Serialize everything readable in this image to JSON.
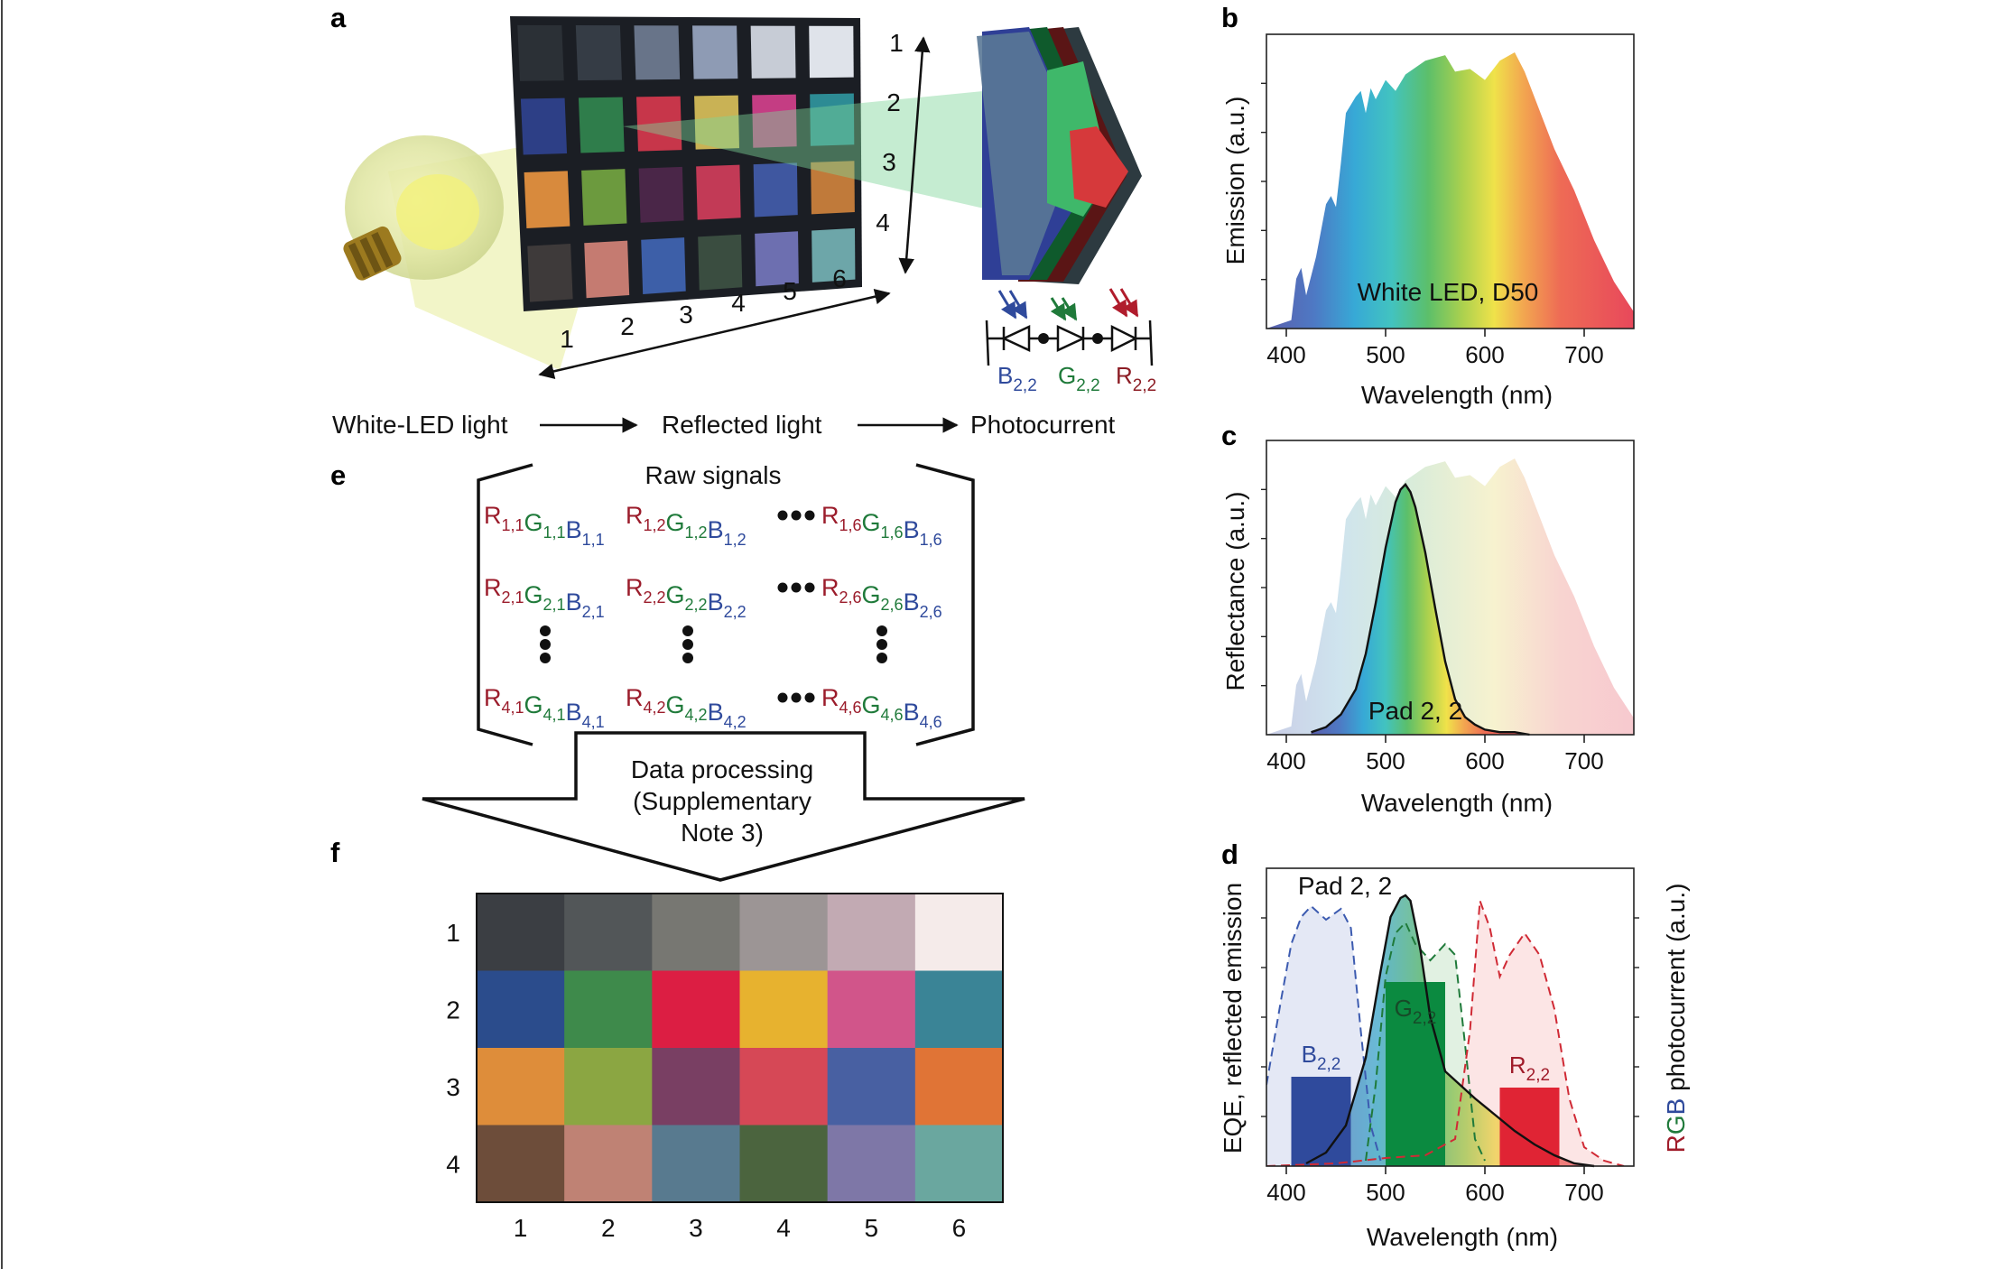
{
  "panels": {
    "a": "a",
    "b": "b",
    "c": "c",
    "d": "d",
    "e": "e",
    "f": "f"
  },
  "panel_a": {
    "row_numbers": [
      "1",
      "2",
      "3",
      "4"
    ],
    "col_numbers": [
      "1",
      "2",
      "3",
      "4",
      "5",
      "6"
    ],
    "detector_labels": [
      {
        "base": "B",
        "sub": "2,2",
        "color": "#2f4a9c"
      },
      {
        "base": "G",
        "sub": "2,2",
        "color": "#1f7a3a"
      },
      {
        "base": "R",
        "sub": "2,2",
        "color": "#8c1c24"
      }
    ],
    "flow": [
      "White-LED light",
      "Reflected light",
      "Photocurrent"
    ],
    "chart_tiles": [
      [
        "#2b3036",
        "#353c45",
        "#687489",
        "#8e9bb4",
        "#c7ccd6",
        "#dfe3ea"
      ],
      [
        "#2d3f86",
        "#2f7d4b",
        "#c7364a",
        "#c9b255",
        "#c43d83",
        "#2d8b94"
      ],
      [
        "#d88a3d",
        "#6c9a3e",
        "#4a2648",
        "#c23a56",
        "#3f57a0",
        "#c07a3a"
      ],
      [
        "#3e3a3a",
        "#c57b71",
        "#3d5fa8",
        "#3a4d40",
        "#6d6fb0",
        "#6da6a9"
      ]
    ]
  },
  "panel_b": {
    "annotation": "White LED, D50",
    "xlabel": "Wavelength (nm)",
    "ylabel": "Emission (a.u.)"
  },
  "panel_c": {
    "annotation": "Pad 2, 2",
    "xlabel": "Wavelength (nm)",
    "ylabel": "Reflectance (a.u.)"
  },
  "panel_d": {
    "annotation": "Pad 2, 2",
    "xlabel": "Wavelength (nm)",
    "ylabel_left": "EQE, reflected emission",
    "ylabel_right_parts": [
      {
        "text": "R",
        "color": "#a01c2a"
      },
      {
        "text": "G",
        "color": "#1f7a3a"
      },
      {
        "text": "B",
        "color": "#2f4a9c"
      },
      {
        "text": " photocurrent (a.u.)",
        "color": "#111111"
      }
    ],
    "bar_labels": [
      {
        "base": "B",
        "sub": "2,2",
        "color": "#2f4a9c"
      },
      {
        "base": "G",
        "sub": "2,2",
        "color": "#174a28"
      },
      {
        "base": "R",
        "sub": "2,2",
        "color": "#a01c2a"
      }
    ]
  },
  "panel_e": {
    "title": "Raw signals",
    "rows": [
      {
        "r": "1",
        "cols": [
          "1",
          "2",
          "6"
        ]
      },
      {
        "r": "2",
        "cols": [
          "1",
          "2",
          "6"
        ]
      },
      {
        "r": "4",
        "cols": [
          "1",
          "2",
          "6"
        ]
      }
    ],
    "letters": [
      {
        "l": "R",
        "color": "#9b1c2b"
      },
      {
        "l": "G",
        "color": "#1f7a3a"
      },
      {
        "l": "B",
        "color": "#2f4a9c"
      }
    ],
    "arrow_text": [
      "Data processing",
      "(Supplementary",
      "Note 3)"
    ]
  },
  "panel_f": {
    "row_labels": [
      "1",
      "2",
      "3",
      "4"
    ],
    "col_labels": [
      "1",
      "2",
      "3",
      "4",
      "5",
      "6"
    ],
    "colors": [
      [
        "#3b3e43",
        "#525658",
        "#777772",
        "#9c9595",
        "#c2aab3",
        "#f5ebea"
      ],
      [
        "#2b4c8c",
        "#3e8a4b",
        "#dc1e43",
        "#e7b22f",
        "#d1558a",
        "#3a8496"
      ],
      [
        "#de8d3a",
        "#8ba642",
        "#793f63",
        "#d64856",
        "#4860a2",
        "#e07436"
      ],
      [
        "#6d4d3a",
        "#bf8274",
        "#587a8f",
        "#4b643e",
        "#7e77a7",
        "#6aa79f"
      ]
    ]
  },
  "chart_data": [
    {
      "type": "area",
      "panel": "b",
      "xlabel": "Wavelength (nm)",
      "ylabel": "Emission (a.u.)",
      "xlim": [
        380,
        750
      ],
      "xticks": [
        400,
        500,
        600,
        700
      ],
      "annotation": "White LED, D50",
      "series": [
        {
          "x": [
            380,
            405,
            410,
            415,
            420,
            430,
            440,
            445,
            450,
            455,
            460,
            470,
            475,
            480,
            485,
            490,
            500,
            510,
            520,
            540,
            560,
            570,
            585,
            600,
            615,
            630,
            640,
            655,
            670,
            690,
            710,
            730,
            750
          ],
          "values": [
            0.0,
            0.03,
            0.18,
            0.22,
            0.12,
            0.26,
            0.45,
            0.48,
            0.44,
            0.6,
            0.78,
            0.84,
            0.86,
            0.78,
            0.87,
            0.83,
            0.9,
            0.86,
            0.92,
            0.97,
            0.99,
            0.93,
            0.94,
            0.9,
            0.97,
            1.0,
            0.93,
            0.79,
            0.65,
            0.5,
            0.32,
            0.17,
            0.06
          ]
        }
      ]
    },
    {
      "type": "area",
      "panel": "c",
      "xlabel": "Wavelength (nm)",
      "ylabel": "Reflectance (a.u.)",
      "xlim": [
        380,
        750
      ],
      "xticks": [
        400,
        500,
        600,
        700
      ],
      "annotation": "Pad 2, 2",
      "series": [
        {
          "name": "",
          "x": [
            425,
            440,
            455,
            470,
            480,
            490,
            500,
            510,
            515,
            520,
            525,
            530,
            540,
            550,
            560,
            570,
            580,
            590,
            600,
            615,
            630,
            645
          ],
          "values": [
            0.01,
            0.03,
            0.08,
            0.18,
            0.32,
            0.52,
            0.74,
            0.92,
            0.97,
            0.99,
            0.96,
            0.9,
            0.72,
            0.5,
            0.29,
            0.14,
            0.07,
            0.04,
            0.02,
            0.01,
            0.01,
            0.0
          ]
        }
      ]
    },
    {
      "type": "line",
      "panel": "d",
      "xlabel": "Wavelength (nm)",
      "ylabel": "EQE, reflected emission",
      "xlim": [
        380,
        750
      ],
      "xticks": [
        400,
        500,
        600,
        700
      ],
      "annotation": "Pad 2, 2",
      "series": [
        {
          "x": [
            380,
            395,
            405,
            415,
            425,
            440,
            455,
            465,
            475,
            485,
            495
          ],
          "values": [
            0.3,
            0.62,
            0.82,
            0.92,
            0.96,
            0.91,
            0.95,
            0.88,
            0.5,
            0.15,
            0.02
          ]
        },
        {
          "x": [
            480,
            490,
            500,
            510,
            520,
            530,
            545,
            560,
            570,
            580,
            590,
            600
          ],
          "values": [
            0.02,
            0.3,
            0.7,
            0.86,
            0.9,
            0.82,
            0.76,
            0.82,
            0.78,
            0.45,
            0.1,
            0.02
          ]
        },
        {
          "x": [
            380,
            450,
            500,
            540,
            570,
            585,
            595,
            605,
            615,
            625,
            640,
            655,
            670,
            685,
            700,
            720,
            740
          ],
          "values": [
            0.0,
            0.01,
            0.03,
            0.04,
            0.1,
            0.5,
            0.98,
            0.88,
            0.7,
            0.78,
            0.86,
            0.78,
            0.58,
            0.25,
            0.07,
            0.02,
            0.0
          ]
        },
        {
          "x": [
            420,
            440,
            460,
            480,
            495,
            505,
            515,
            520,
            525,
            535,
            545,
            560,
            575,
            590,
            610,
            630,
            650,
            670,
            690,
            710
          ],
          "values": [
            0.01,
            0.05,
            0.15,
            0.4,
            0.72,
            0.92,
            0.99,
            1.0,
            0.98,
            0.8,
            0.55,
            0.35,
            0.3,
            0.25,
            0.19,
            0.13,
            0.08,
            0.04,
            0.01,
            0.0
          ]
        }
      ],
      "bars": [
        {
          "label": "B2,2",
          "x_range": [
            405,
            465
          ],
          "value": 0.33,
          "color": "#2f4a9c"
        },
        {
          "label": "G2,2",
          "x_range": [
            500,
            560
          ],
          "value": 0.68,
          "color": "#0b8a40"
        },
        {
          "label": "R2,2",
          "x_range": [
            615,
            675
          ],
          "value": 0.29,
          "color": "#e02434"
        }
      ]
    }
  ]
}
